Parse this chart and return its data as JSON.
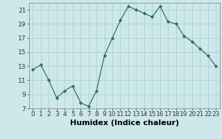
{
  "xlabel": "Humidex (Indice chaleur)",
  "x": [
    0,
    1,
    2,
    3,
    4,
    5,
    6,
    7,
    8,
    9,
    10,
    11,
    12,
    13,
    14,
    15,
    16,
    17,
    18,
    19,
    20,
    21,
    22,
    23
  ],
  "y": [
    12.5,
    13.2,
    11.0,
    8.5,
    9.5,
    10.2,
    7.8,
    7.3,
    9.5,
    14.5,
    17.0,
    19.5,
    21.5,
    21.0,
    20.5,
    20.0,
    21.5,
    19.3,
    19.0,
    17.3,
    16.5,
    15.5,
    14.5,
    13.0
  ],
  "ylim": [
    7,
    22
  ],
  "yticks": [
    7,
    9,
    11,
    13,
    15,
    17,
    19,
    21
  ],
  "xlim": [
    -0.5,
    23.5
  ],
  "line_color": "#2d6b5e",
  "marker": "D",
  "marker_size": 2.2,
  "bg_color": "#cce8eb",
  "grid_color": "#b0ced1",
  "tick_fontsize": 6.5,
  "label_fontsize": 8
}
